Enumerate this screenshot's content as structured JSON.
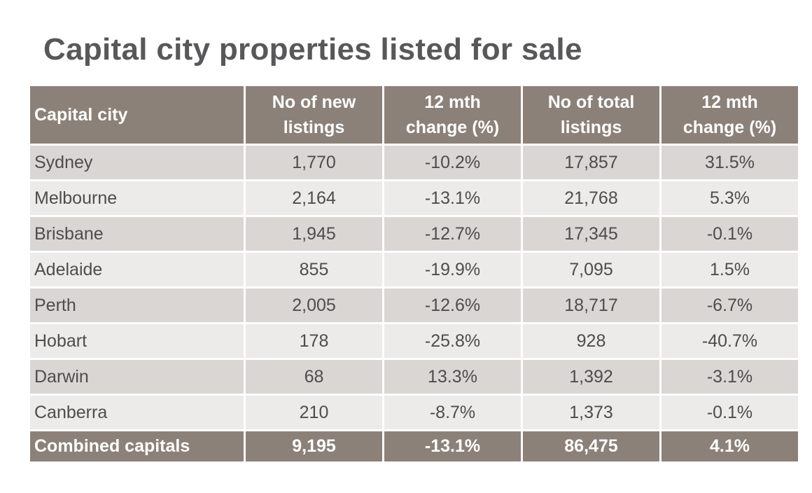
{
  "header": {
    "title": "Capital city properties listed for sale"
  },
  "table": {
    "columns": [
      "Capital city",
      "No of new listings",
      "12 mth change (%)",
      "No of total listings",
      "12 mth change (%)"
    ],
    "rows": [
      [
        "Sydney",
        "1,770",
        "-10.2%",
        "17,857",
        "31.5%"
      ],
      [
        "Melbourne",
        "2,164",
        "-13.1%",
        "21,768",
        "5.3%"
      ],
      [
        "Brisbane",
        "1,945",
        "-12.7%",
        "17,345",
        "-0.1%"
      ],
      [
        "Adelaide",
        "855",
        "-19.9%",
        "7,095",
        "1.5%"
      ],
      [
        "Perth",
        "2,005",
        "-12.6%",
        "18,717",
        "-6.7%"
      ],
      [
        "Hobart",
        "178",
        "-25.8%",
        "928",
        "-40.7%"
      ],
      [
        "Darwin",
        "68",
        "13.3%",
        "1,392",
        "-3.1%"
      ],
      [
        "Canberra",
        "210",
        "-8.7%",
        "1,373",
        "-0.1%"
      ]
    ],
    "total": [
      "Combined capitals",
      "9,195",
      "-13.1%",
      "86,475",
      "4.1%"
    ]
  }
}
